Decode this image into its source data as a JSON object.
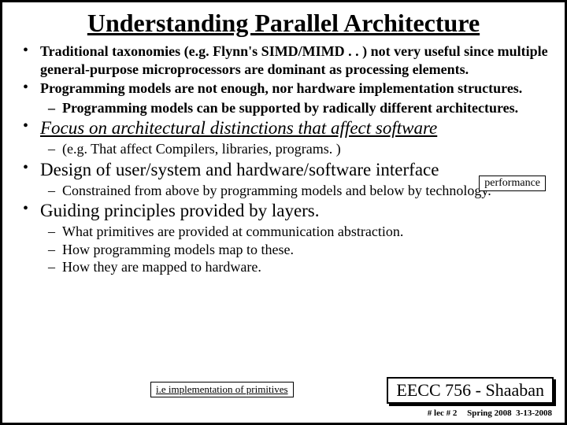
{
  "title": "Understanding Parallel Architecture",
  "bullets": {
    "b1": "Traditional taxonomies (e.g. Flynn's SIMD/MIMD . . ) not very useful since multiple general-purpose microprocessors are dominant as processing elements.",
    "b2": "Programming models are not enough, nor hardware implementation structures.",
    "b2s1": "Programming models can be supported by radically different architectures.",
    "b3": "Focus on architectural distinctions that affect software",
    "b3s1": "(e.g.  That affect Compilers, libraries, programs. )",
    "b4": "Design of user/system and hardware/software interface",
    "b4s1": "Constrained from above by programming models and below by technology.",
    "b5": "Guiding principles provided by layers.",
    "b5s1": "What primitives are provided at communication abstraction.",
    "b5s2": "How programming models map to these.",
    "b5s3": "How they are mapped to hardware."
  },
  "callouts": {
    "performance": "performance",
    "ie": "i.e implementation of primitives"
  },
  "course": "EECC 756 - Shaaban",
  "footer": {
    "lec": "#  lec # 2",
    "term": "Spring 2008",
    "date": "3-13-2008"
  }
}
